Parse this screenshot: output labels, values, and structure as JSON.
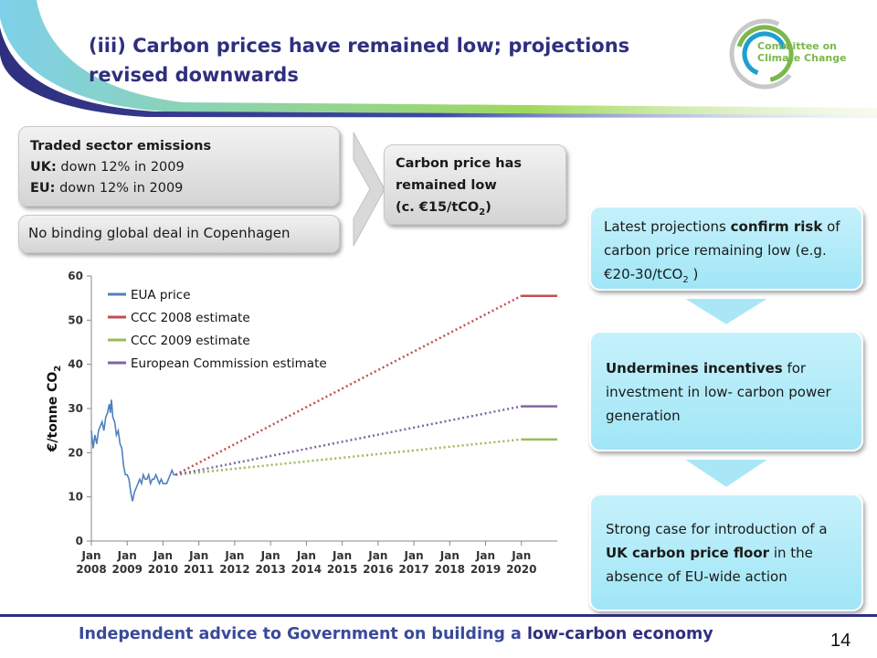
{
  "title": "(iii) Carbon prices have remained low; projections revised downwards",
  "logo": {
    "line1": "Committee on",
    "line2": "Climate Change"
  },
  "boxes": {
    "traded": {
      "heading": "Traded sector emissions",
      "uk_label": "UK:",
      "uk_text": " down 12% in 2009",
      "eu_label": "EU:",
      "eu_text": " down 12% in 2009"
    },
    "copenhagen": "No binding global deal in Copenhagen",
    "price": {
      "line1": "Carbon price has",
      "line2": "remained low",
      "line3_pre": "(c. €15/tCO",
      "sub": "2",
      "line3_post": ")"
    },
    "projections": {
      "pre": "Latest projections ",
      "bold": "confirm risk",
      "mid": " of carbon price remaining low (e.g. €20-30/tCO",
      "sub": "2",
      "post": " )"
    },
    "undermines": {
      "bold": "Undermines incentives",
      "rest": " for investment in low- carbon power generation"
    },
    "floor": {
      "pre": "Strong case for introduction of a ",
      "bold": "UK carbon price floor",
      "post": " in the absence of EU-wide action"
    }
  },
  "footer": {
    "pre": "Independent advice to Government on building a ",
    "bold": "low-carbon economy"
  },
  "page_number": "14",
  "chart_data": {
    "type": "line",
    "ylabel": "€/tonne CO",
    "ylabel_sub": "2",
    "ylim": [
      0,
      60
    ],
    "yticks": [
      0,
      10,
      20,
      30,
      40,
      50,
      60
    ],
    "xlim": [
      2008,
      2021
    ],
    "xticks": [
      {
        "value": 2008,
        "top": "Jan",
        "bottom": "2008"
      },
      {
        "value": 2009,
        "top": "Jan",
        "bottom": "2009"
      },
      {
        "value": 2010,
        "top": "Jan",
        "bottom": "2010"
      },
      {
        "value": 2011,
        "top": "Jan",
        "bottom": "2011"
      },
      {
        "value": 2012,
        "top": "Jan",
        "bottom": "2012"
      },
      {
        "value": 2013,
        "top": "Jan",
        "bottom": "2013"
      },
      {
        "value": 2014,
        "top": "Jan",
        "bottom": "2014"
      },
      {
        "value": 2015,
        "top": "Jan",
        "bottom": "2015"
      },
      {
        "value": 2016,
        "top": "Jan",
        "bottom": "2016"
      },
      {
        "value": 2017,
        "top": "Jan",
        "bottom": "2017"
      },
      {
        "value": 2018,
        "top": "Jan",
        "bottom": "2018"
      },
      {
        "value": 2019,
        "top": "Jan",
        "bottom": "2019"
      },
      {
        "value": 2020,
        "top": "Jan",
        "bottom": "2020"
      }
    ],
    "grid": false,
    "legend_position": "top-left",
    "series": [
      {
        "name": "EUA price",
        "color": "#4f81bd",
        "style": "solid",
        "points": [
          [
            2008.0,
            25
          ],
          [
            2008.05,
            21
          ],
          [
            2008.1,
            24
          ],
          [
            2008.15,
            22
          ],
          [
            2008.2,
            25
          ],
          [
            2008.25,
            26
          ],
          [
            2008.3,
            27
          ],
          [
            2008.35,
            25
          ],
          [
            2008.4,
            28
          ],
          [
            2008.45,
            29
          ],
          [
            2008.5,
            31
          ],
          [
            2008.53,
            29
          ],
          [
            2008.56,
            32
          ],
          [
            2008.6,
            28
          ],
          [
            2008.65,
            27
          ],
          [
            2008.7,
            24
          ],
          [
            2008.75,
            25
          ],
          [
            2008.8,
            22
          ],
          [
            2008.85,
            21
          ],
          [
            2008.9,
            17
          ],
          [
            2008.95,
            15
          ],
          [
            2009.0,
            15
          ],
          [
            2009.05,
            14
          ],
          [
            2009.1,
            11
          ],
          [
            2009.15,
            9
          ],
          [
            2009.2,
            11
          ],
          [
            2009.25,
            12
          ],
          [
            2009.3,
            13
          ],
          [
            2009.35,
            14
          ],
          [
            2009.4,
            13
          ],
          [
            2009.45,
            15
          ],
          [
            2009.5,
            14
          ],
          [
            2009.55,
            14
          ],
          [
            2009.6,
            15
          ],
          [
            2009.65,
            13
          ],
          [
            2009.7,
            14
          ],
          [
            2009.75,
            14
          ],
          [
            2009.8,
            15
          ],
          [
            2009.85,
            14
          ],
          [
            2009.9,
            13
          ],
          [
            2009.95,
            14
          ],
          [
            2010.0,
            13
          ],
          [
            2010.05,
            13
          ],
          [
            2010.1,
            13
          ],
          [
            2010.15,
            14
          ],
          [
            2010.2,
            15
          ],
          [
            2010.25,
            16
          ],
          [
            2010.3,
            15
          ],
          [
            2010.35,
            15
          ]
        ]
      },
      {
        "name": "CCC 2008 estimate",
        "color": "#c0504d",
        "style": "dotted-then-solid",
        "points": [
          [
            2010.35,
            15
          ],
          [
            2020.0,
            55.5
          ],
          [
            2021.0,
            55.5
          ]
        ]
      },
      {
        "name": "CCC 2009 estimate",
        "color": "#9bbb59",
        "style": "dotted-then-solid",
        "points": [
          [
            2010.35,
            15
          ],
          [
            2020.0,
            23
          ],
          [
            2021.0,
            23
          ]
        ]
      },
      {
        "name": "European Commission estimate",
        "color": "#8064a2",
        "style": "dotted-then-solid",
        "points": [
          [
            2010.35,
            15
          ],
          [
            2020.0,
            30.5
          ],
          [
            2021.0,
            30.5
          ]
        ]
      }
    ]
  }
}
